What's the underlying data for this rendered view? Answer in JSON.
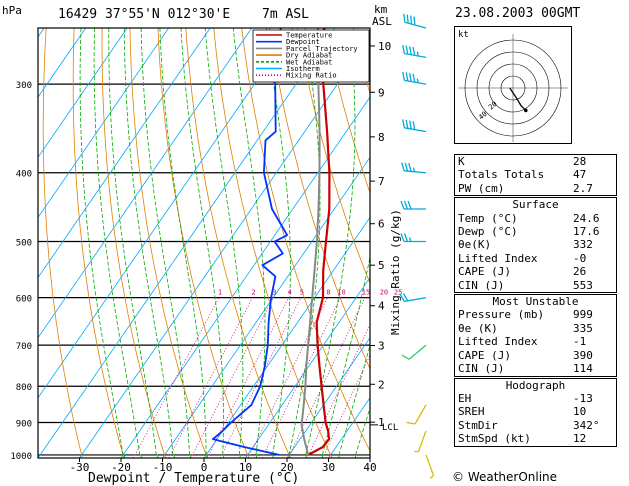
{
  "header": {
    "hpa_label": "hPa",
    "station": "16429  37°55'N  012°30'E",
    "elevation": "7m  ASL",
    "km_label": "km",
    "asl_label": "ASL",
    "date": "23.08.2003  00GMT"
  },
  "legend": {
    "items": [
      {
        "label": "Temperature",
        "color": "#cc0000"
      },
      {
        "label": "Dewpoint",
        "color": "#0033ff"
      },
      {
        "label": "Parcel Trajectory",
        "color": "#888888"
      },
      {
        "label": "Dry Adiabat",
        "color": "#e08000"
      },
      {
        "label": "Wet Adiabat",
        "color": "#00aa00"
      },
      {
        "label": "Isotherm",
        "color": "#00aaff"
      },
      {
        "label": "Mixing Ratio",
        "color": "#cc0077"
      }
    ]
  },
  "axes": {
    "xlabel": "Dewpoint / Temperature (°C)",
    "mixing_ratio_label": "Mixing Ratio (g/kg)",
    "lcl_label": "LCL"
  },
  "chart_data": {
    "type": "line",
    "diagram": "skew-t log-p",
    "pressure_levels": [
      300,
      400,
      500,
      600,
      700,
      800,
      900,
      1000
    ],
    "pressure_range": [
      250,
      1010
    ],
    "temperature_ticks": [
      -30,
      -20,
      -10,
      0,
      10,
      20,
      30,
      40
    ],
    "temperature_range": [
      -40,
      40
    ],
    "km_ticks": [
      {
        "label": "10",
        "p": 265
      },
      {
        "label": "9",
        "p": 308
      },
      {
        "label": "8",
        "p": 356
      },
      {
        "label": "7",
        "p": 411
      },
      {
        "label": "6",
        "p": 472
      },
      {
        "label": "5",
        "p": 540
      },
      {
        "label": "4",
        "p": 616
      },
      {
        "label": "3",
        "p": 701
      },
      {
        "label": "2",
        "p": 795
      },
      {
        "label": "1",
        "p": 899
      }
    ],
    "mixing_ratio_labels": [
      "1",
      "2",
      "3",
      "4",
      "5",
      "8",
      "10",
      "15",
      "20",
      "25"
    ],
    "mixing_ratio_values": [
      1,
      2,
      3,
      4,
      5,
      8,
      10,
      15,
      20,
      25
    ],
    "lcl_pressure": 907,
    "series": [
      {
        "name": "Temperature",
        "points": [
          [
            1000,
            24.6
          ],
          [
            975,
            26.8
          ],
          [
            950,
            27.0
          ],
          [
            925,
            25.4
          ],
          [
            900,
            23.4
          ],
          [
            850,
            20.0
          ],
          [
            800,
            16.4
          ],
          [
            750,
            12.6
          ],
          [
            700,
            8.6
          ],
          [
            650,
            4.6
          ],
          [
            600,
            2.0
          ],
          [
            550,
            -2.4
          ],
          [
            500,
            -6.6
          ],
          [
            450,
            -11.2
          ],
          [
            400,
            -17.2
          ],
          [
            350,
            -24.6
          ],
          [
            300,
            -33.4
          ],
          [
            275,
            -38.0
          ],
          [
            255,
            -42.0
          ],
          [
            250,
            -42.5
          ]
        ]
      },
      {
        "name": "Dewpoint",
        "points": [
          [
            1000,
            17.6
          ],
          [
            975,
            8.0
          ],
          [
            950,
            -1.0
          ],
          [
            925,
            0.0
          ],
          [
            900,
            0.6
          ],
          [
            850,
            2.6
          ],
          [
            800,
            1.6
          ],
          [
            750,
            -0.6
          ],
          [
            700,
            -3.4
          ],
          [
            650,
            -7.0
          ],
          [
            600,
            -10.5
          ],
          [
            560,
            -13.0
          ],
          [
            540,
            -18.0
          ],
          [
            520,
            -15.0
          ],
          [
            500,
            -19.0
          ],
          [
            490,
            -17.0
          ],
          [
            450,
            -25.0
          ],
          [
            400,
            -33.0
          ],
          [
            360,
            -38.0
          ],
          [
            350,
            -37.0
          ],
          [
            300,
            -45.0
          ],
          [
            270,
            -50.0
          ],
          [
            250,
            -53.0
          ]
        ]
      },
      {
        "name": "Parcel Trajectory",
        "points": [
          [
            1000,
            24.6
          ],
          [
            950,
            21.0
          ],
          [
            907,
            18.0
          ],
          [
            850,
            15.2
          ],
          [
            800,
            12.5
          ],
          [
            750,
            9.4
          ],
          [
            700,
            6.3
          ],
          [
            650,
            3.0
          ],
          [
            600,
            -0.6
          ],
          [
            550,
            -4.5
          ],
          [
            500,
            -8.8
          ],
          [
            450,
            -13.8
          ],
          [
            400,
            -19.6
          ],
          [
            350,
            -26.4
          ],
          [
            300,
            -34.6
          ],
          [
            250,
            -44.0
          ]
        ]
      }
    ]
  },
  "winds": [
    {
      "p": 1000,
      "dir": 160,
      "spd": 5
    },
    {
      "p": 925,
      "dir": 200,
      "spd": 5
    },
    {
      "p": 850,
      "dir": 210,
      "spd": 10
    },
    {
      "p": 700,
      "dir": 230,
      "spd": 10
    },
    {
      "p": 600,
      "dir": 260,
      "spd": 20
    },
    {
      "p": 500,
      "dir": 270,
      "spd": 25
    },
    {
      "p": 450,
      "dir": 270,
      "spd": 30
    },
    {
      "p": 400,
      "dir": 275,
      "spd": 35
    },
    {
      "p": 350,
      "dir": 280,
      "spd": 40
    },
    {
      "p": 300,
      "dir": 280,
      "spd": 45
    },
    {
      "p": 275,
      "dir": 280,
      "spd": 45
    },
    {
      "p": 250,
      "dir": 285,
      "spd": 40
    }
  ],
  "hodograph": {
    "label": "kt",
    "ring_labels": [
      "20",
      "40"
    ],
    "points": [
      [
        -2,
        0
      ],
      [
        0,
        -3
      ],
      [
        2,
        -6
      ],
      [
        5,
        -11
      ],
      [
        8,
        -14
      ]
    ]
  },
  "indices": {
    "block1": [
      {
        "label": "K",
        "value": "28"
      },
      {
        "label": "Totals Totals",
        "value": "47"
      },
      {
        "label": "PW (cm)",
        "value": "2.7"
      }
    ],
    "surface": {
      "title": "Surface",
      "rows": [
        {
          "label": "Temp (°C)",
          "value": "24.6"
        },
        {
          "label": "Dewp (°C)",
          "value": "17.6"
        },
        {
          "label": "θe(K)",
          "value": "332"
        },
        {
          "label": "Lifted Index",
          "value": "-0"
        },
        {
          "label": "CAPE (J)",
          "value": "26"
        },
        {
          "label": "CIN (J)",
          "value": "553"
        }
      ]
    },
    "most_unstable": {
      "title": "Most Unstable",
      "rows": [
        {
          "label": "Pressure (mb)",
          "value": "999"
        },
        {
          "label": "θe (K)",
          "value": "335"
        },
        {
          "label": "Lifted Index",
          "value": "-1"
        },
        {
          "label": "CAPE (J)",
          "value": "390"
        },
        {
          "label": "CIN (J)",
          "value": "114"
        }
      ]
    },
    "hodograph_block": {
      "title": "Hodograph",
      "rows": [
        {
          "label": "EH",
          "value": "-13"
        },
        {
          "label": "SREH",
          "value": "10"
        },
        {
          "label": "StmDir",
          "value": "342°"
        },
        {
          "label": "StmSpd (kt)",
          "value": "12"
        }
      ]
    }
  },
  "credit": "© WeatherOnline"
}
